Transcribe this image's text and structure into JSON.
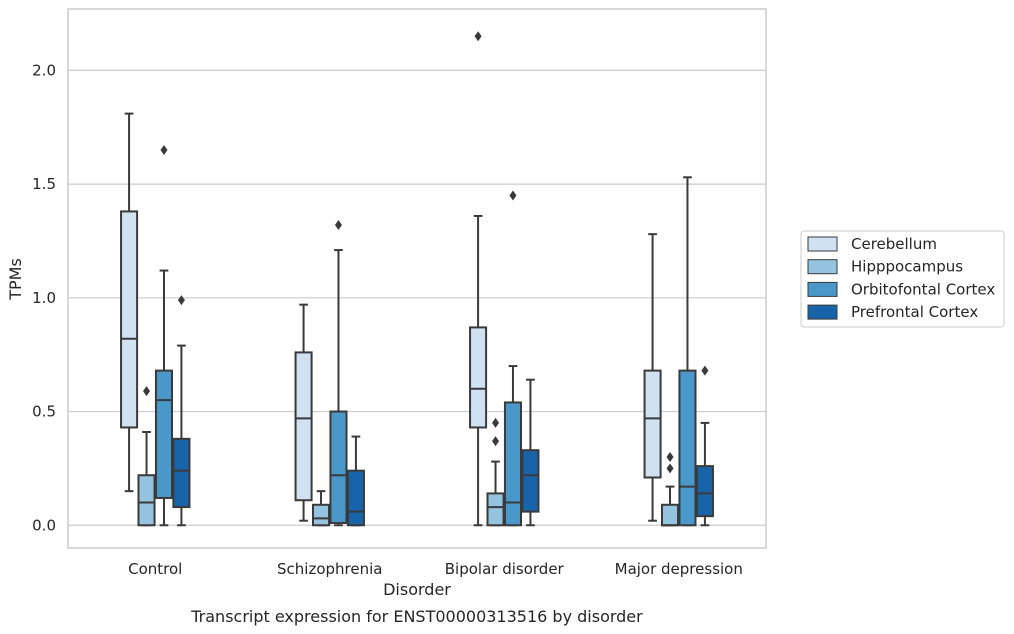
{
  "colors": {
    "Cerebellum": "#d0e1f2",
    "Hipppocampus": "#94c4df",
    "Orbitofontal Cortex": "#4a98c9",
    "Prefrontal Cortex": "#1764ab",
    "box_edge": "#3a3a3a",
    "grid": "#cccccc"
  },
  "chart_data": {
    "type": "box",
    "caption": "Transcript expression for ENST00000313516 by disorder",
    "xlabel": "Disorder",
    "ylabel": "TPMs",
    "ylim": [
      -0.1,
      2.27
    ],
    "yticks": [
      0.0,
      0.5,
      1.0,
      1.5,
      2.0
    ],
    "ytick_labels": [
      "0.0",
      "0.5",
      "1.0",
      "1.5",
      "2.0"
    ],
    "grid": "horizontal",
    "legend_position": "right",
    "categories": [
      "Control",
      "Schizophrenia",
      "Bipolar disorder",
      "Major depression"
    ],
    "series": [
      {
        "name": "Cerebellum",
        "boxes": [
          {
            "whislo": 0.15,
            "q1": 0.43,
            "med": 0.82,
            "q3": 1.38,
            "whishi": 1.81,
            "fliers": []
          },
          {
            "whislo": 0.02,
            "q1": 0.11,
            "med": 0.47,
            "q3": 0.76,
            "whishi": 0.97,
            "fliers": []
          },
          {
            "whislo": 0.0,
            "q1": 0.43,
            "med": 0.6,
            "q3": 0.87,
            "whishi": 1.36,
            "fliers": [
              2.15
            ]
          },
          {
            "whislo": 0.02,
            "q1": 0.21,
            "med": 0.47,
            "q3": 0.68,
            "whishi": 1.28,
            "fliers": []
          }
        ]
      },
      {
        "name": "Hipppocampus",
        "boxes": [
          {
            "whislo": 0.0,
            "q1": 0.0,
            "med": 0.1,
            "q3": 0.22,
            "whishi": 0.41,
            "fliers": [
              0.59
            ]
          },
          {
            "whislo": 0.0,
            "q1": 0.0,
            "med": 0.03,
            "q3": 0.09,
            "whishi": 0.15,
            "fliers": []
          },
          {
            "whislo": 0.0,
            "q1": 0.0,
            "med": 0.08,
            "q3": 0.14,
            "whishi": 0.28,
            "fliers": [
              0.37,
              0.45
            ]
          },
          {
            "whislo": 0.0,
            "q1": 0.0,
            "med": 0.0,
            "q3": 0.09,
            "whishi": 0.17,
            "fliers": [
              0.25,
              0.3
            ]
          }
        ]
      },
      {
        "name": "Orbitofontal Cortex",
        "boxes": [
          {
            "whislo": 0.0,
            "q1": 0.12,
            "med": 0.55,
            "q3": 0.68,
            "whishi": 1.12,
            "fliers": [
              1.65
            ]
          },
          {
            "whislo": 0.0,
            "q1": 0.01,
            "med": 0.22,
            "q3": 0.5,
            "whishi": 1.21,
            "fliers": [
              1.32
            ]
          },
          {
            "whislo": 0.0,
            "q1": 0.0,
            "med": 0.1,
            "q3": 0.54,
            "whishi": 0.7,
            "fliers": [
              1.45
            ]
          },
          {
            "whislo": 0.0,
            "q1": 0.0,
            "med": 0.17,
            "q3": 0.68,
            "whishi": 1.53,
            "fliers": []
          }
        ]
      },
      {
        "name": "Prefrontal Cortex",
        "boxes": [
          {
            "whislo": 0.0,
            "q1": 0.08,
            "med": 0.24,
            "q3": 0.38,
            "whishi": 0.79,
            "fliers": [
              0.99
            ]
          },
          {
            "whislo": 0.0,
            "q1": 0.0,
            "med": 0.06,
            "q3": 0.24,
            "whishi": 0.39,
            "fliers": []
          },
          {
            "whislo": 0.0,
            "q1": 0.06,
            "med": 0.22,
            "q3": 0.33,
            "whishi": 0.64,
            "fliers": []
          },
          {
            "whislo": 0.0,
            "q1": 0.04,
            "med": 0.14,
            "q3": 0.26,
            "whishi": 0.45,
            "fliers": [
              0.68
            ]
          }
        ]
      }
    ]
  }
}
